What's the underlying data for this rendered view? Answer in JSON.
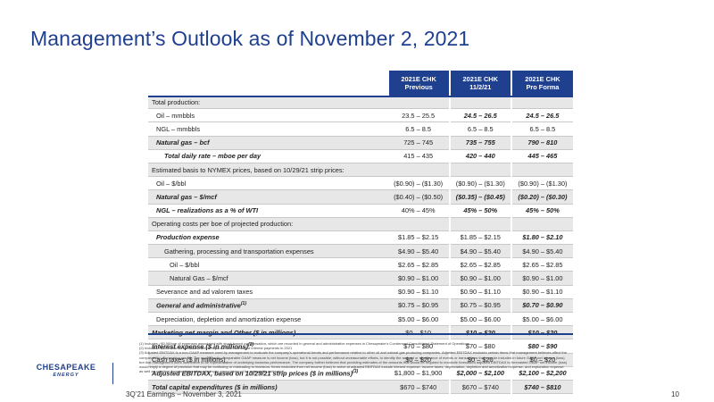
{
  "title": "Management’s Outlook as of November 2, 2021",
  "table": {
    "columns": [
      "2021E CHK\nPrevious",
      "2021E CHK\n11/2/21",
      "2021E CHK\nPro Forma"
    ],
    "rows": [
      {
        "label": "Total production:",
        "values": [
          "",
          "",
          ""
        ],
        "shade": true,
        "style": "section"
      },
      {
        "label": "Oil – mmbbls",
        "values": [
          "23.5 – 25.5",
          "24.5 – 26.5",
          "24.5 – 26.5"
        ],
        "shade": false,
        "style": "i1",
        "bold_cols": [
          1,
          2
        ]
      },
      {
        "label": "NGL – mmbbls",
        "values": [
          "6.5 – 8.5",
          "6.5 – 8.5",
          "6.5 – 8.5"
        ],
        "shade": false,
        "style": "i1",
        "bold_cols": []
      },
      {
        "label": "Natural gas – bcf",
        "values": [
          "725 – 745",
          "735 – 755",
          "790 – 810"
        ],
        "shade": true,
        "style": "i1 bi",
        "bold_cols": [
          1,
          2
        ]
      },
      {
        "label": "Total daily rate – mboe per day",
        "values": [
          "415 – 435",
          "420 – 440",
          "445 – 465"
        ],
        "shade": false,
        "style": "i2 bi",
        "bold_cols": [
          1,
          2
        ]
      },
      {
        "label": "Estimated basis to NYMEX prices, based on 10/29/21 strip prices:",
        "values": [
          "",
          "",
          ""
        ],
        "shade": true,
        "style": "section",
        "bold_cols": []
      },
      {
        "label": "Oil – $/bbl",
        "values": [
          "($0.90) – ($1.30)",
          "($0.90) – ($1.30)",
          "($0.90) – ($1.30)"
        ],
        "shade": false,
        "style": "i1",
        "bold_cols": []
      },
      {
        "label": "Natural gas – $/mcf",
        "values": [
          "($0.40) – ($0.50)",
          "($0.35) – ($0.45)",
          "($0.20) – ($0.30)"
        ],
        "shade": true,
        "style": "i1 bi",
        "bold_cols": [
          1,
          2
        ]
      },
      {
        "label": "NGL – realizations as a % of WTI",
        "values": [
          "40% – 45%",
          "45% – 50%",
          "45% – 50%"
        ],
        "shade": false,
        "style": "i1 bi",
        "bold_cols": [
          1,
          2
        ]
      },
      {
        "label": "Operating costs per boe of projected production:",
        "values": [
          "",
          "",
          ""
        ],
        "shade": true,
        "style": "section",
        "bold_cols": []
      },
      {
        "label": "Production expense",
        "values": [
          "$1.85 – $2.15",
          "$1.85 – $2.15",
          "$1.80 – $2.10"
        ],
        "shade": false,
        "style": "i1 bi",
        "bold_cols": [
          2
        ]
      },
      {
        "label": "Gathering, processing and transportation expenses",
        "values": [
          "$4.90 – $5.40",
          "$4.90 – $5.40",
          "$4.90 – $5.40"
        ],
        "shade": true,
        "style": "i2",
        "bold_cols": []
      },
      {
        "label": "Oil – $/bbl",
        "values": [
          "$2.65 – $2.85",
          "$2.65 – $2.85",
          "$2.65 – $2.85"
        ],
        "shade": false,
        "style": "i3",
        "bold_cols": []
      },
      {
        "label": "Natural Gas – $/mcf",
        "values": [
          "$0.90 – $1.00",
          "$0.90 – $1.00",
          "$0.90 – $1.00"
        ],
        "shade": true,
        "style": "i3",
        "bold_cols": []
      },
      {
        "label": "Severance and ad valorem taxes",
        "values": [
          "$0.90 – $1.10",
          "$0.90 – $1.10",
          "$0.90 – $1.10"
        ],
        "shade": false,
        "style": "i1",
        "bold_cols": []
      },
      {
        "label": "General and administrative",
        "sup": "(1)",
        "values": [
          "$0.75 – $0.95",
          "$0.75 – $0.95",
          "$0.70 – $0.90"
        ],
        "shade": true,
        "style": "i1 bi",
        "bold_cols": [
          2
        ]
      },
      {
        "label": "Depreciation, depletion and amortization expense",
        "values": [
          "$5.00 – $6.00",
          "$5.00 – $6.00",
          "$5.00 – $6.00"
        ],
        "shade": false,
        "style": "i1",
        "bold_cols": []
      },
      {
        "label": "Marketing net margin and Other ($ in millions)",
        "values": [
          "$0 – $10",
          "$10 – $20",
          "$10 – $20"
        ],
        "shade": true,
        "style": "bi",
        "bold_cols": [
          1,
          2
        ]
      },
      {
        "label": "Interest expense ($ in millions)",
        "sup": "(2)",
        "values": [
          "$70 – $80",
          "$70 – $80",
          "$80 – $90"
        ],
        "shade": false,
        "style": "bi",
        "bold_cols": [
          2
        ]
      },
      {
        "label": "Cash taxes ($ in millions)",
        "values": [
          "$0 – $20",
          "$0 – $20",
          "$0 – $20"
        ],
        "shade": true,
        "style": "",
        "bold_cols": []
      },
      {
        "label": "Adjusted EBITDAX, based on 10/29/21 strip prices ($ in millions)",
        "sup": "(3)",
        "values": [
          "$1,800 – $1,900",
          "$2,000 – $2,100",
          "$2,100 – $2,200"
        ],
        "shade": false,
        "style": "bi",
        "bold_cols": [
          1,
          2
        ]
      },
      {
        "label": "Total capital expenditures ($ in millions)",
        "values": [
          "$670 – $740",
          "$670 – $740",
          "$740 – $810"
        ],
        "shade": true,
        "style": "bi",
        "bold_cols": [
          2
        ]
      }
    ]
  },
  "footnotes": [
    "(1)  Includes ~$0.08/boe of expenses associated with stock-based compensation, which are recorded in general and administrative expenses in Chesapeake’s Condensed Consolidated Statement of Operations.",
    "(2)  Includes ~$25 million of non-cash interest expense due to timing of interest payments in 2021",
    "(3)  Adjusted EBITDAX is a non-GAAP measure used by management to evaluate the company’s operational trends and performance relative to other oil and natural gas producing companies. Adjusted EBITDAX excludes certain items that management believes affect the comparability of operating results. The most directly comparable GAAP measure is net income (loss), but it is not possible, without unreasonable efforts, to identify the amount or significance of events or transactions that may be included in future GAAP net income (loss) but that management does not believe to be representative of underlying business performance. The company further believes that providing estimates of the amounts that would be required to reconcile forecasted adjusted EBITDAX to forecasted GAAP net income (loss) would imply a degree of precision that may be confusing or misleading to investors. Items excluded from net income (loss) to arrive at adjusted EBITDAX include interest expense, income taxes, depreciation, depletion and amortization expense, and exploration expense as well as one-time items or items whose timing or amount cannot be reasonably estimated."
  ],
  "logo": {
    "main": "CHESAPEAKE",
    "sub": "ENERGY"
  },
  "footer": {
    "text": "3Q’21 Earnings – November 3, 2021",
    "page": "10"
  },
  "colors": {
    "brand": "#1f3f8f",
    "shade": "#e7e7e7"
  }
}
